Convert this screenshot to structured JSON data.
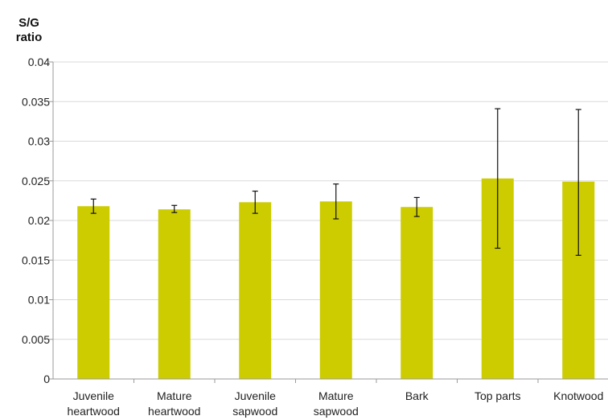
{
  "chart_data": {
    "type": "bar",
    "ylabel": [
      "S/G",
      "ratio"
    ],
    "xlabel": "",
    "ylim": [
      0,
      0.04
    ],
    "y_ticks": [
      0,
      0.005,
      0.01,
      0.015,
      0.02,
      0.025,
      0.03,
      0.035,
      0.04
    ],
    "y_tick_labels": [
      "0",
      "0.005",
      "0.01",
      "0.015",
      "0.02",
      "0.025",
      "0.03",
      "0.035",
      "0.04"
    ],
    "grid": true,
    "legend": "none",
    "bar_color": "#cccc00",
    "categories": [
      [
        "Juvenile",
        "heartwood"
      ],
      [
        "Mature",
        "heartwood"
      ],
      [
        "Juvenile",
        "sapwood"
      ],
      [
        "Mature",
        "sapwood"
      ],
      [
        "Bark"
      ],
      [
        "Top parts"
      ],
      [
        "Knotwood"
      ]
    ],
    "values": [
      0.0218,
      0.0214,
      0.0223,
      0.0224,
      0.0217,
      0.0253,
      0.0249
    ],
    "error_low": [
      0.0209,
      0.021,
      0.0209,
      0.0202,
      0.0205,
      0.0165,
      0.0156
    ],
    "error_high": [
      0.0227,
      0.0219,
      0.0237,
      0.0246,
      0.0229,
      0.0341,
      0.034
    ]
  }
}
